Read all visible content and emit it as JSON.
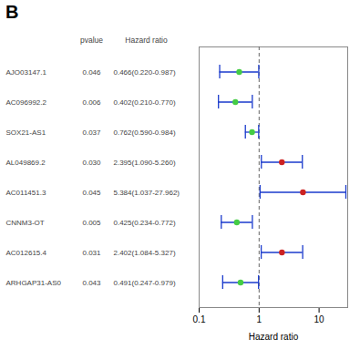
{
  "chart_data": {
    "type": "forest",
    "title": "B",
    "xlabel": "Hazard ratio",
    "categories": [
      "AJO03147.1",
      "AC096992.2",
      "SOX21-AS1",
      "AL049869.2",
      "AC011451.3",
      "CNNM3-OT",
      "AC012615.4",
      "ARHGAP31-AS0"
    ],
    "values": [
      0.466,
      0.402,
      0.762,
      2.395,
      5.384,
      0.425,
      2.402,
      0.491
    ],
    "value_labels": [
      "0.466(0.220-0.987)",
      "0.402(0.210-0.770)",
      "0.762(0.590-0.984)",
      "2.395(1.090-5.260)",
      "5.384(1.037-27.962)",
      "0.425(0.234-0.772)",
      "2.402(1.084-5.327)",
      "0.491(0.247-0.979)"
    ],
    "ci_low": [
      0.22,
      0.21,
      0.59,
      1.09,
      1.037,
      0.234,
      1.084,
      0.247
    ],
    "ci_high": [
      0.987,
      0.77,
      0.984,
      5.26,
      27.962,
      0.772,
      5.327,
      0.979
    ],
    "pvalues": [
      "0.046",
      "0.006",
      "0.037",
      "0.030",
      "0.045",
      "0.005",
      "0.031",
      "0.043"
    ],
    "column_labels": [
      "pvalue",
      "Hazard ratio"
    ],
    "reference_line": 1,
    "xlim": [
      0.1,
      30
    ],
    "xticks": [
      0.1,
      1,
      10
    ],
    "log": "x",
    "color": "#1a3acc",
    "colors": [
      "#44cc44",
      "#44cc44",
      "#44cc44",
      "#cc2222",
      "#cc2222",
      "#44cc44",
      "#cc2222",
      "#44cc44"
    ]
  }
}
